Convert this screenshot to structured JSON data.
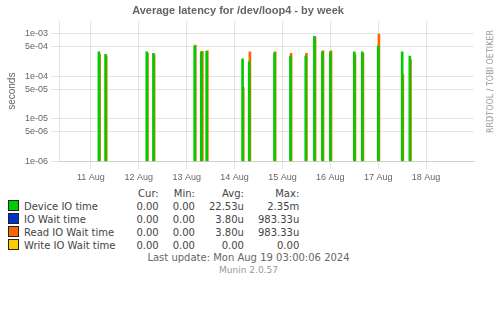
{
  "chart_data": {
    "type": "bar",
    "title": "Average latency for /dev/loop4 - by week",
    "ylabel": "seconds",
    "log": "y",
    "grid": true,
    "legend": "bottom",
    "xlim": [
      1723190400,
      1723939200
    ],
    "xticks": [
      {
        "value": 1723248000,
        "label": "11 Aug"
      },
      {
        "value": 1723334400,
        "label": "12 Aug"
      },
      {
        "value": 1723420800,
        "label": "13 Aug"
      },
      {
        "value": 1723507200,
        "label": "14 Aug"
      },
      {
        "value": 1723593600,
        "label": "15 Aug"
      },
      {
        "value": 1723680000,
        "label": "16 Aug"
      },
      {
        "value": 1723766400,
        "label": "17 Aug"
      },
      {
        "value": 1723852800,
        "label": "18 Aug"
      }
    ],
    "ylim": [
      1e-06,
      0.002
    ],
    "yticks": [
      {
        "value": 1e-06,
        "label": "1e-06"
      },
      {
        "value": 5e-06,
        "label": "5e-06"
      },
      {
        "value": 1e-05,
        "label": "1e-05"
      },
      {
        "value": 5e-05,
        "label": "5e-05"
      },
      {
        "value": 0.0001,
        "label": "1e-04"
      },
      {
        "value": 0.0005,
        "label": "5e-04"
      },
      {
        "value": 0.001,
        "label": "1e-03"
      }
    ],
    "series": [
      {
        "name": "Device IO time",
        "color": "#00cc00",
        "x": [
          1723262400,
          1723274400,
          1723348800,
          1723360800,
          1723435200,
          1723447200,
          1723456800,
          1723521600,
          1723533600,
          1723579200,
          1723608000,
          1723635600,
          1723651200,
          1723665600,
          1723680000,
          1723723200,
          1723737600,
          1723766400,
          1723809600,
          1723823400
        ],
        "values": [
          0.00038,
          0.00033,
          0.00038,
          0.00035,
          0.00052,
          0.00038,
          0.00039,
          0.00026,
          0.00022,
          0.00036,
          0.0003,
          0.0003,
          0.00088,
          0.00038,
          0.00038,
          0.00038,
          0.00038,
          0.00052,
          0.00038,
          0.0003
        ]
      },
      {
        "name": "IO Wait time",
        "color": "#0033cc",
        "x": [],
        "values": []
      },
      {
        "name": "Read IO Wait time",
        "color": "#ff6600",
        "x": [
          1723263600,
          1723275600,
          1723350000,
          1723362000,
          1723436400,
          1723449000,
          1723458000,
          1723522800,
          1723534800,
          1723580400,
          1723609200,
          1723636800,
          1723652400,
          1723666800,
          1723681200,
          1723724400,
          1723738800,
          1723767600,
          1723810800,
          1723824600
        ],
        "values": [
          0.00033,
          0.0003,
          0.00035,
          0.00032,
          0.00055,
          0.00039,
          0.0004,
          5.5e-05,
          0.00038,
          0.00038,
          0.00035,
          0.00035,
          0.00085,
          0.0004,
          0.0004,
          0.00032,
          0.00035,
          0.001,
          0.00011,
          0.00025
        ]
      },
      {
        "name": "Write IO Wait time",
        "color": "#ffcc00",
        "x": [],
        "values": []
      }
    ],
    "table": {
      "columns": [
        "Cur:",
        "Min:",
        "Avg:",
        "Max:"
      ],
      "rows": [
        [
          "0.00",
          "0.00",
          "22.53u",
          "2.35m"
        ],
        [
          "0.00",
          "0.00",
          "3.80u",
          "983.33u"
        ],
        [
          "0.00",
          "0.00",
          "3.80u",
          "983.33u"
        ],
        [
          "0.00",
          "0.00",
          "0.00",
          "0.00"
        ]
      ]
    },
    "annotations": [
      "RRDTOOL / TOBI OETIKER",
      "Last update: Mon Aug 19 03:00:06 2024",
      "Munin 2.0.57"
    ]
  }
}
